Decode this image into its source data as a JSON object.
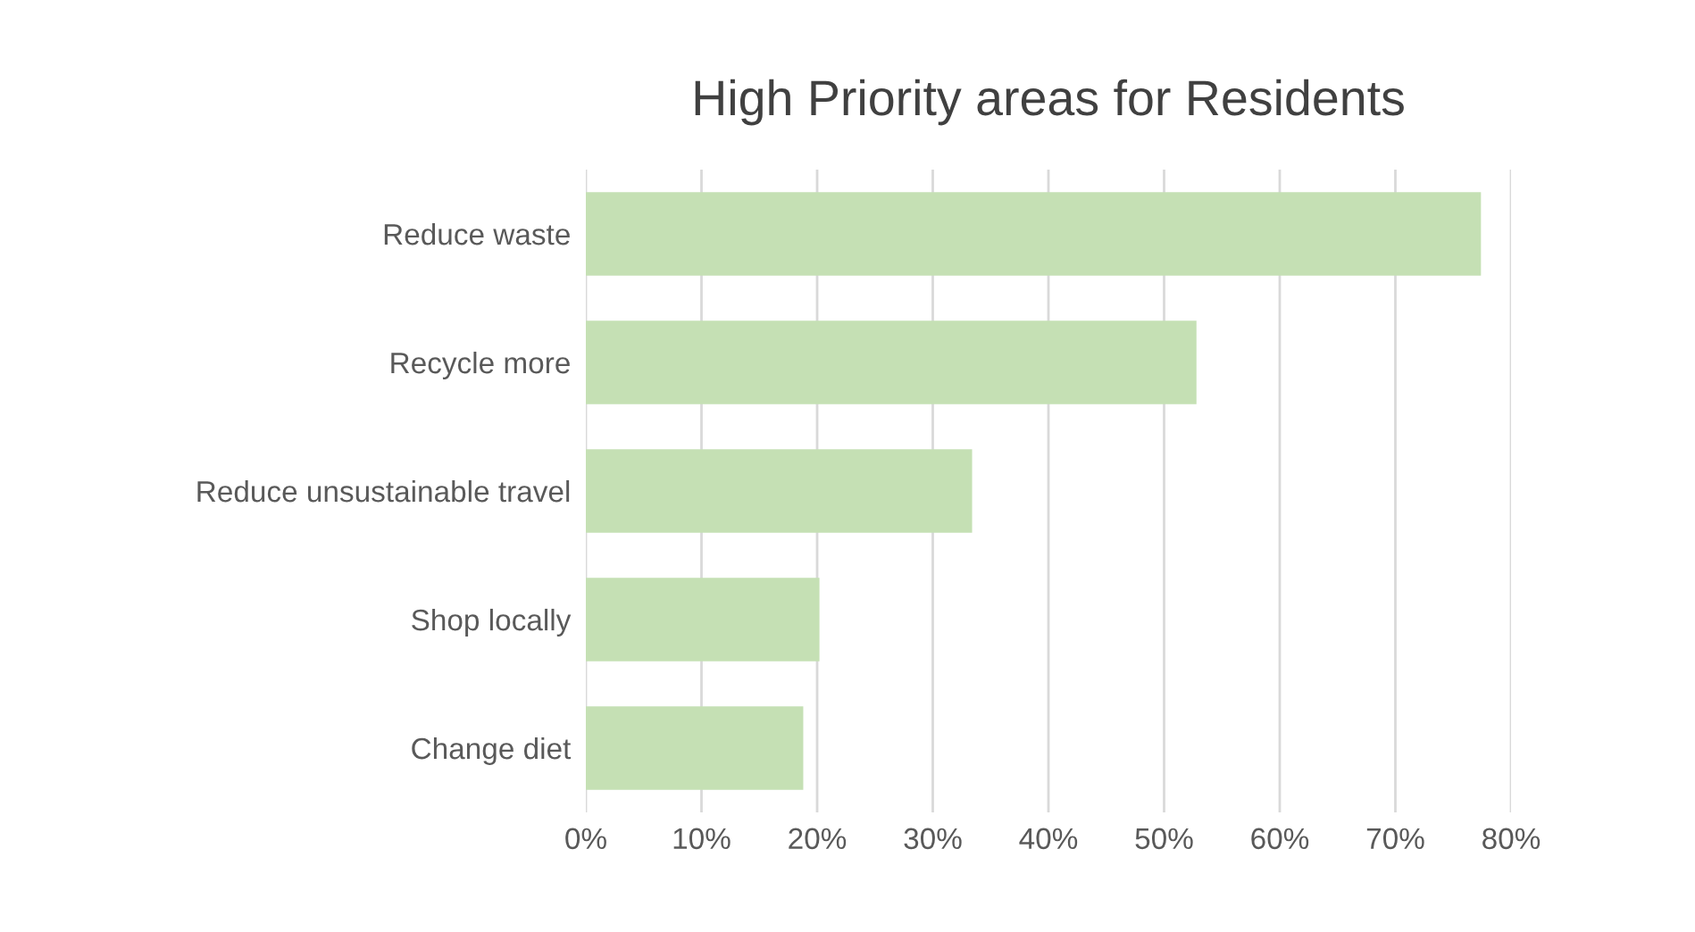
{
  "chart_data": {
    "type": "bar",
    "orientation": "horizontal",
    "title": "High Priority areas for Residents",
    "categories": [
      "Reduce waste",
      "Recycle more",
      "Reduce unsustainable travel",
      "Shop locally",
      "Change diet"
    ],
    "values": [
      77.4,
      52.8,
      33.4,
      20.2,
      18.8
    ],
    "color": "#c5e0b4",
    "xlim": [
      0,
      80
    ],
    "xticks": [
      {
        "value": 0,
        "label": "0%"
      },
      {
        "value": 10,
        "label": "10%"
      },
      {
        "value": 20,
        "label": "20%"
      },
      {
        "value": 30,
        "label": "30%"
      },
      {
        "value": 40,
        "label": "40%"
      },
      {
        "value": 50,
        "label": "50%"
      },
      {
        "value": 60,
        "label": "60%"
      },
      {
        "value": 70,
        "label": "70%"
      },
      {
        "value": 80,
        "label": "80%"
      }
    ],
    "grid": "x"
  }
}
